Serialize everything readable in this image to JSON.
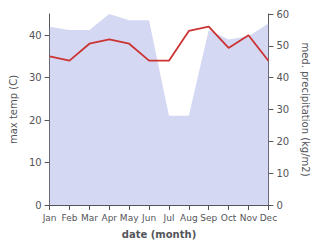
{
  "chart_data": {
    "type": "line",
    "xlabel": "date (month)",
    "ylabel": "max temp (C)",
    "y2label": "med. precipitation (kg/m2)",
    "categories": [
      "Jan",
      "Feb",
      "Mar",
      "Apr",
      "May",
      "Jun",
      "Jul",
      "Aug",
      "Sep",
      "Oct",
      "Nov",
      "Dec"
    ],
    "series": [
      {
        "type": "area",
        "axis": "y2",
        "color": "#b0b8e8",
        "values": [
          56,
          55,
          55,
          60,
          58,
          58,
          28,
          28,
          55,
          52,
          53,
          57
        ]
      },
      {
        "type": "line",
        "color": "#cc3333",
        "values": [
          35,
          34,
          38,
          39,
          38,
          34,
          34,
          41,
          42,
          37,
          40,
          34
        ]
      }
    ],
    "ylim": [
      0,
      45
    ],
    "yticks": [
      0,
      10,
      20,
      30,
      40
    ],
    "y2lim": [
      0,
      60
    ],
    "y2ticks": [
      0,
      10,
      20,
      30,
      40,
      50,
      60
    ],
    "grid": false
  }
}
